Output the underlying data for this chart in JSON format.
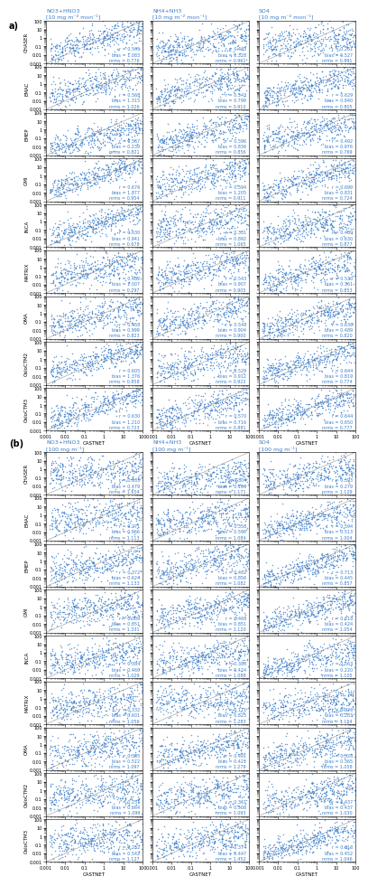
{
  "panel_a_label": "a)",
  "panel_b_label": "(b)",
  "col_titles_a": [
    "NO3+HNO3\n[10 mg m⁻² mon⁻¹]",
    "NH4+NH3\n[10 mg m⁻² mon⁻¹]",
    "SO4\n[10 mg m⁻² mon⁻¹]"
  ],
  "col_titles_b": [
    "NO3+HNO3\n[100 mg m⁻¹]",
    "NH4+NH3\n[100 mg m⁻¹]",
    "SO4\n[100 mg m⁻¹]"
  ],
  "row_labels_a": [
    "CHASER",
    "EMAC",
    "EMEP",
    "GMI",
    "INCA",
    "MATRIX",
    "OMA",
    "OsloCTM2",
    "OsloCTM3"
  ],
  "row_labels_b": [
    "CHASER",
    "EMAC",
    "EMEP",
    "GMI",
    "INCA",
    "MATRIX",
    "OMA",
    "OsloCTM2",
    "OsloCTM3"
  ],
  "dot_color": "#3a7dc9",
  "dot_size": 1.2,
  "line_color": "#aaaaaa",
  "text_color": "#3a7dc9",
  "panel_a_stats": [
    [
      {
        "r": 0.565,
        "bias": 1.083,
        "nrms": 0.776
      },
      {
        "r": 0.435,
        "bias": 0.328,
        "nrms": 0.961
      },
      {
        "r": 0.261,
        "bias": 0.527,
        "nrms": 0.891
      }
    ],
    [
      {
        "r": 0.568,
        "bias": 1.315,
        "nrms": 1.026
      },
      {
        "r": 0.543,
        "bias": 0.799,
        "nrms": 0.91
      },
      {
        "r": 0.629,
        "bias": 0.84,
        "nrms": 0.805
      }
    ],
    [
      {
        "r": 0.567,
        "bias": 0.239,
        "nrms": 0.821
      },
      {
        "r": 0.596,
        "bias": 0.836,
        "nrms": 0.856
      },
      {
        "r": 0.492,
        "bias": 0.976,
        "nrms": 0.769
      }
    ],
    [
      {
        "r": 0.676,
        "bias": 1.877,
        "nrms": 0.954
      },
      {
        "r": 0.594,
        "bias": 1.205,
        "nrms": 0.911
      },
      {
        "r": 0.699,
        "bias": 0.831,
        "nrms": 0.724
      }
    ],
    [
      {
        "r": 0.63,
        "bias": 0.941,
        "nrms": 0.678
      },
      {
        "r": 0.331,
        "bias": 0.892,
        "nrms": 1.065
      },
      {
        "r": 0.489,
        "bias": 0.63,
        "nrms": 0.877
      }
    ],
    [
      {
        "r": 0.482,
        "bias": 1.007,
        "nrms": 0.797
      },
      {
        "r": 0.543,
        "bias": 0.907,
        "nrms": 0.905
      },
      {
        "r": 0.53,
        "bias": 0.361,
        "nrms": 0.853
      }
    ],
    [
      {
        "r": 0.458,
        "bias": 0.999,
        "nrms": 0.823
      },
      {
        "r": 0.548,
        "bias": 0.904,
        "nrms": 0.9
      },
      {
        "r": 0.638,
        "bias": 0.489,
        "nrms": 0.82
      }
    ],
    [
      {
        "r": 0.605,
        "bias": 1.376,
        "nrms": 0.858
      },
      {
        "r": 0.529,
        "bias": 0.912,
        "nrms": 0.922
      },
      {
        "r": 0.644,
        "bias": 0.819,
        "nrms": 0.774
      }
    ],
    [
      {
        "r": 0.63,
        "bias": 1.21,
        "nrms": 0.723
      },
      {
        "r": 0.57,
        "bias": 0.716,
        "nrms": 0.881
      },
      {
        "r": 0.644,
        "bias": 0.65,
        "nrms": 0.777
      }
    ]
  ],
  "panel_b_stats": [
    [
      {
        "r": 0.183,
        "bias": 0.479,
        "nrms": 1.104
      },
      {
        "r": 0.304,
        "bias": 0.106,
        "nrms": 1.171
      },
      {
        "r": 0.393,
        "bias": 0.279,
        "nrms": 1.129
      }
    ],
    [
      {
        "r": 0.271,
        "bias": 0.966,
        "nrms": 1.113
      },
      {
        "r": 0.358,
        "bias": 0.596,
        "nrms": 1.084
      },
      {
        "r": 0.594,
        "bias": 0.513,
        "nrms": 1.004
      }
    ],
    [
      {
        "r": 0.372,
        "bias": 0.624,
        "nrms": 1.133
      },
      {
        "r": 0.482,
        "bias": 0.856,
        "nrms": 1.082
      },
      {
        "r": 0.713,
        "bias": 0.445,
        "nrms": 0.857
      }
    ],
    [
      {
        "r": 0.309,
        "bias": 0.851,
        "nrms": 1.331
      },
      {
        "r": 0.468,
        "bias": 0.851,
        "nrms": 1.12
      },
      {
        "r": 0.618,
        "bias": 0.424,
        "nrms": 1.054
      }
    ],
    [
      {
        "r": 0.384,
        "bias": 0.46,
        "nrms": 1.029
      },
      {
        "r": 0.383,
        "bias": 0.424,
        "nrms": 1.088
      },
      {
        "r": 0.563,
        "bias": 0.22,
        "nrms": 1.105
      }
    ],
    [
      {
        "r": 0.332,
        "bias": 0.601,
        "nrms": 1.056
      },
      {
        "r": 0.111,
        "bias": 0.825,
        "nrms": 1.283
      },
      {
        "r": 0.326,
        "bias": 0.283,
        "nrms": 1.154
      }
    ],
    [
      {
        "r": 0.385,
        "bias": 0.572,
        "nrms": 1.097
      },
      {
        "r": 0.491,
        "bias": 0.421,
        "nrms": 1.279
      },
      {
        "r": 0.528,
        "bias": 0.365,
        "nrms": 1.058
      }
    ],
    [
      {
        "r": 0.251,
        "bias": 0.664,
        "nrms": 1.099
      },
      {
        "r": 0.361,
        "bias": 0.508,
        "nrms": 1.093
      },
      {
        "r": 0.437,
        "bias": 0.437,
        "nrms": 1.03
      }
    ],
    [
      {
        "r": 0.252,
        "bias": 0.542,
        "nrms": 1.127
      },
      {
        "r": 0.374,
        "bias": 0.447,
        "nrms": 1.452
      },
      {
        "r": 0.613,
        "bias": 0.452,
        "nrms": 1.046
      }
    ]
  ],
  "n_points": 400,
  "seed": 42
}
